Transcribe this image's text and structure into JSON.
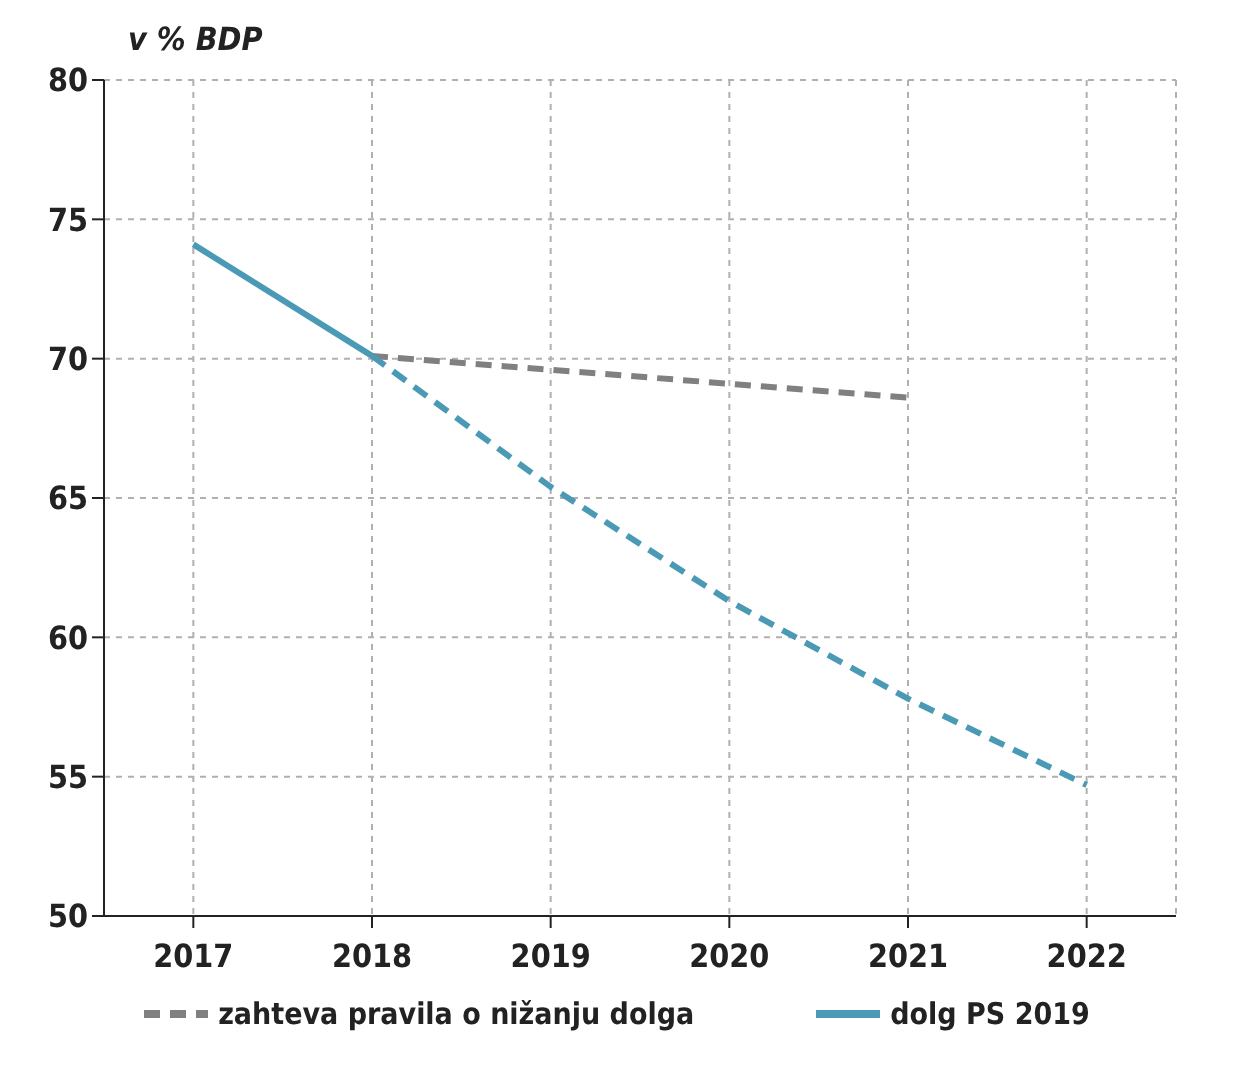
{
  "chart_data": {
    "type": "line",
    "ylabel": "v % BDP",
    "categories": [
      "2017",
      "2018",
      "2019",
      "2020",
      "2021",
      "2022"
    ],
    "ylim": [
      50,
      80
    ],
    "yticks": [
      50,
      55,
      60,
      65,
      70,
      75,
      80
    ],
    "grid": true,
    "legend": "bottom",
    "marker": "none",
    "series": [
      {
        "name": "zahteva pravila o nižanju dolga",
        "color": "#808080",
        "line_style": "dashed",
        "values": [
          null,
          70.1,
          69.6,
          69.1,
          68.6,
          null
        ]
      },
      {
        "name": "dolg PS 2019",
        "color": "#4a9ab5",
        "line_style": "solid",
        "values": [
          74.1,
          70.1,
          null,
          null,
          null,
          null
        ]
      },
      {
        "color": "#4a9ab5",
        "line_style": "dashed",
        "values": [
          null,
          70.1,
          65.4,
          61.3,
          57.8,
          54.7
        ]
      }
    ]
  }
}
